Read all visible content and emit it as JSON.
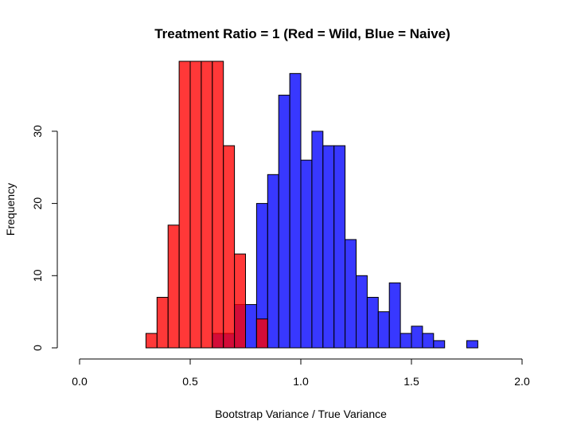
{
  "chart_data": {
    "type": "bar",
    "title": "Treatment Ratio = 1 (Red = Wild, Blue = Naive)",
    "xlabel": "Bootstrap Variance / True Variance",
    "ylabel": "Frequency",
    "xlim": [
      0.0,
      2.0
    ],
    "ylim": [
      0,
      40
    ],
    "x_ticks": [
      "0.0",
      "0.5",
      "1.0",
      "1.5",
      "2.0"
    ],
    "y_ticks": [
      "0",
      "10",
      "20",
      "30"
    ],
    "bin_width": 0.05,
    "series": [
      {
        "color": "#ff0000",
        "bins": [
          {
            "x0": 0.3,
            "count": 2
          },
          {
            "x0": 0.35,
            "count": 7
          },
          {
            "x0": 0.4,
            "count": 17
          },
          {
            "x0": 0.45,
            "count": 40
          },
          {
            "x0": 0.5,
            "count": 40
          },
          {
            "x0": 0.55,
            "count": 40
          },
          {
            "x0": 0.6,
            "count": 40
          },
          {
            "x0": 0.65,
            "count": 28
          },
          {
            "x0": 0.7,
            "count": 13
          },
          {
            "x0": 0.8,
            "count": 4
          }
        ]
      },
      {
        "color": "#0000ff",
        "bins": [
          {
            "x0": 0.6,
            "count": 2
          },
          {
            "x0": 0.65,
            "count": 2
          },
          {
            "x0": 0.7,
            "count": 6
          },
          {
            "x0": 0.75,
            "count": 6
          },
          {
            "x0": 0.8,
            "count": 20
          },
          {
            "x0": 0.85,
            "count": 24
          },
          {
            "x0": 0.9,
            "count": 35
          },
          {
            "x0": 0.95,
            "count": 38
          },
          {
            "x0": 1.0,
            "count": 26
          },
          {
            "x0": 1.05,
            "count": 30
          },
          {
            "x0": 1.1,
            "count": 28
          },
          {
            "x0": 1.15,
            "count": 28
          },
          {
            "x0": 1.2,
            "count": 15
          },
          {
            "x0": 1.25,
            "count": 10
          },
          {
            "x0": 1.3,
            "count": 7
          },
          {
            "x0": 1.35,
            "count": 5
          },
          {
            "x0": 1.4,
            "count": 9
          },
          {
            "x0": 1.45,
            "count": 2
          },
          {
            "x0": 1.5,
            "count": 3
          },
          {
            "x0": 1.55,
            "count": 2
          },
          {
            "x0": 1.6,
            "count": 1
          },
          {
            "x0": 1.75,
            "count": 1
          }
        ]
      }
    ]
  }
}
